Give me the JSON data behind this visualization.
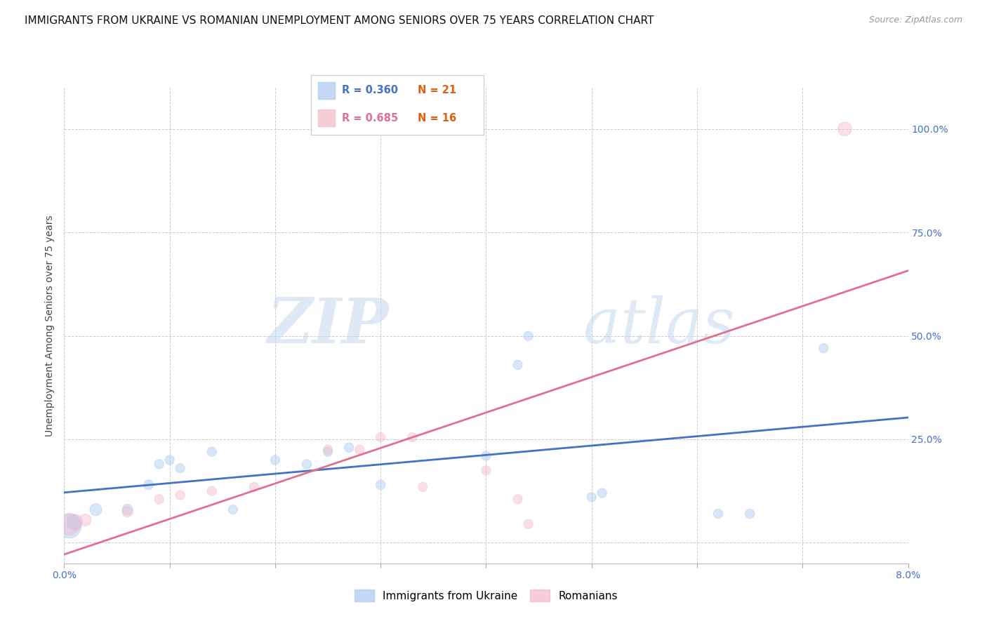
{
  "title": "IMMIGRANTS FROM UKRAINE VS ROMANIAN UNEMPLOYMENT AMONG SENIORS OVER 75 YEARS CORRELATION CHART",
  "source": "Source: ZipAtlas.com",
  "ylabel": "Unemployment Among Seniors over 75 years",
  "xlim": [
    0.0,
    0.08
  ],
  "ylim": [
    -0.05,
    1.1
  ],
  "yticks": [
    0.0,
    0.25,
    0.5,
    0.75,
    1.0
  ],
  "ytick_labels": [
    "",
    "25.0%",
    "50.0%",
    "75.0%",
    "100.0%"
  ],
  "xtick_vals": [
    0.0,
    0.01,
    0.02,
    0.03,
    0.04,
    0.05,
    0.06,
    0.07,
    0.08
  ],
  "xtick_labels_sparse": [
    "0.0%",
    "",
    "",
    "",
    "",
    "",
    "",
    "",
    "8.0%"
  ],
  "ukraine_x": [
    0.0005,
    0.001,
    0.003,
    0.006,
    0.008,
    0.009,
    0.01,
    0.011,
    0.014,
    0.016,
    0.02,
    0.023,
    0.025,
    0.027,
    0.03,
    0.04,
    0.043,
    0.044,
    0.05,
    0.051,
    0.062,
    0.065,
    0.072
  ],
  "ukraine_y": [
    0.04,
    0.05,
    0.08,
    0.08,
    0.14,
    0.19,
    0.2,
    0.18,
    0.22,
    0.08,
    0.2,
    0.19,
    0.22,
    0.23,
    0.14,
    0.21,
    0.43,
    0.5,
    0.11,
    0.12,
    0.07,
    0.07,
    0.47
  ],
  "ukraine_sizes": [
    600,
    250,
    150,
    120,
    100,
    90,
    90,
    90,
    90,
    90,
    90,
    90,
    90,
    90,
    90,
    90,
    90,
    90,
    90,
    90,
    90,
    90,
    90
  ],
  "romanian_x": [
    0.0005,
    0.002,
    0.006,
    0.009,
    0.011,
    0.014,
    0.018,
    0.025,
    0.028,
    0.03,
    0.033,
    0.034,
    0.04,
    0.043,
    0.044,
    0.074
  ],
  "romanian_y": [
    0.045,
    0.055,
    0.075,
    0.105,
    0.115,
    0.125,
    0.135,
    0.225,
    0.225,
    0.255,
    0.255,
    0.135,
    0.175,
    0.105,
    0.045,
    1.0
  ],
  "romanian_sizes": [
    500,
    150,
    120,
    90,
    90,
    90,
    90,
    90,
    90,
    90,
    90,
    90,
    90,
    90,
    90,
    200
  ],
  "ukraine_color": "#a8c8f0",
  "romanian_color": "#f5b8c8",
  "ukraine_line_color": "#4472c4",
  "romanian_line_color": "#e07090",
  "tick_color": "#4472c4",
  "bg_color": "#ffffff",
  "grid_color": "#cccccc",
  "title_fontsize": 11,
  "axis_label_fontsize": 10,
  "tick_fontsize": 10,
  "watermark_text": "ZIP",
  "watermark_text2": "atlas"
}
